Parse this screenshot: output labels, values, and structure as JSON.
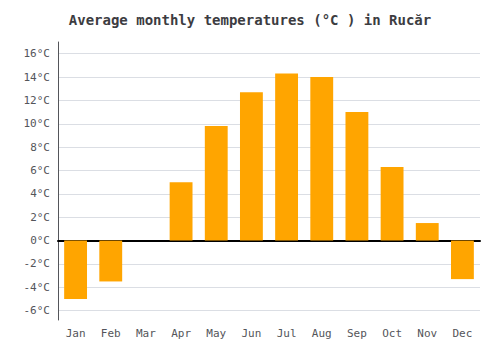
{
  "chart_data": {
    "type": "bar",
    "title": "Average monthly temperatures (°C ) in Rucăr",
    "categories": [
      "Jan",
      "Feb",
      "Mar",
      "Apr",
      "May",
      "Jun",
      "Jul",
      "Aug",
      "Sep",
      "Oct",
      "Nov",
      "Dec"
    ],
    "values": [
      -5.0,
      -3.5,
      0.0,
      5.0,
      9.8,
      12.7,
      14.3,
      14.0,
      11.0,
      6.3,
      1.5,
      -3.3
    ],
    "color": "#FFA500",
    "ylim": [
      -6.8,
      17.0
    ],
    "yticks": [
      {
        "value": -6,
        "label": "-6°C"
      },
      {
        "value": -4,
        "label": "-4°C"
      },
      {
        "value": -2,
        "label": "-2°C"
      },
      {
        "value": 0,
        "label": "0°C"
      },
      {
        "value": 2,
        "label": "2°C"
      },
      {
        "value": 4,
        "label": "4°C"
      },
      {
        "value": 6,
        "label": "6°C"
      },
      {
        "value": 8,
        "label": "8°C"
      },
      {
        "value": 10,
        "label": "10°C"
      },
      {
        "value": 12,
        "label": "12°C"
      },
      {
        "value": 14,
        "label": "14°C"
      },
      {
        "value": 16,
        "label": "16°C"
      }
    ],
    "grid": true
  }
}
